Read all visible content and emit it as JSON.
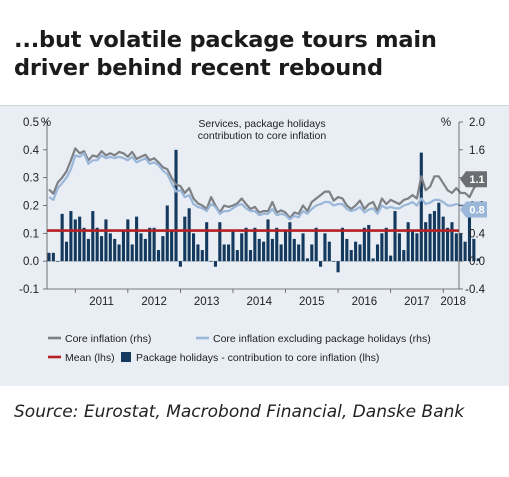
{
  "title": "...but volatile package tours main driver behind recent rebound",
  "source": "Source: Eurostat, Macrobond Financial, Danske Bank",
  "chart_data": {
    "type": "bar",
    "annotation": "Services, package holidays contribution to core inflation",
    "left_axis": {
      "unit": "%",
      "range": [
        -0.1,
        0.5
      ],
      "ticks": [
        -0.1,
        0.0,
        0.1,
        0.2,
        0.3,
        0.4,
        0.5
      ]
    },
    "right_axis": {
      "unit": "%",
      "range": [
        -0.4,
        2.0
      ],
      "ticks": [
        -0.4,
        0.0,
        0.4,
        0.8,
        1.2,
        1.6,
        2.0
      ]
    },
    "x_ticks": [
      "2011",
      "2012",
      "2013",
      "2014",
      "2015",
      "2016",
      "2017",
      "2018"
    ],
    "end_labels": [
      {
        "series": "Core inflation (rhs)",
        "value": "1.1",
        "color": "#6b6e72"
      },
      {
        "series": "Core inflation excluding package holidays (rhs)",
        "value": "0.8",
        "color": "#9ab6d8"
      }
    ],
    "legend": [
      {
        "label": "Core inflation (rhs)",
        "color": "#7d8084",
        "symbol": "line"
      },
      {
        "label": "Core inflation excluding package holidays (rhs)",
        "color": "#9ab6d8",
        "symbol": "line"
      },
      {
        "label": "Mean (lhs)",
        "color": "#b52025",
        "symbol": "line"
      },
      {
        "label": "Package holidays - contribution to core inflation (lhs)",
        "color": "#14395e",
        "symbol": "square"
      }
    ],
    "months_start": "2010-07",
    "mean_lhs": 0.11,
    "series": [
      {
        "name": "Package holidays - contribution to core inflation (lhs)",
        "axis": "lhs",
        "color": "#14395e",
        "values": [
          0.03,
          0.03,
          0.0,
          0.17,
          0.07,
          0.18,
          0.15,
          0.16,
          0.12,
          0.08,
          0.18,
          0.12,
          0.09,
          0.15,
          0.1,
          0.08,
          0.06,
          0.11,
          0.15,
          0.06,
          0.16,
          0.1,
          0.08,
          0.12,
          0.12,
          0.04,
          0.09,
          0.2,
          0.11,
          0.4,
          -0.02,
          0.16,
          0.19,
          0.1,
          0.06,
          0.04,
          0.14,
          0.0,
          -0.02,
          0.14,
          0.06,
          0.06,
          0.11,
          0.04,
          0.1,
          0.12,
          0.04,
          0.12,
          0.08,
          0.07,
          0.15,
          0.08,
          0.12,
          0.06,
          0.11,
          0.14,
          0.08,
          0.06,
          0.1,
          0.01,
          0.06,
          0.12,
          -0.02,
          0.1,
          0.07,
          0.0,
          -0.04,
          0.12,
          0.08,
          0.04,
          0.07,
          0.06,
          0.12,
          0.13,
          0.01,
          0.06,
          0.1,
          0.12,
          0.02,
          0.18,
          0.1,
          0.04,
          0.14,
          0.11,
          0.1,
          0.39,
          0.14,
          0.17,
          0.18,
          0.21,
          0.16,
          0.12,
          0.14,
          0.1,
          0.1,
          0.07,
          0.2,
          0.08,
          0.01
        ]
      },
      {
        "name": "Core inflation (rhs)",
        "axis": "rhs",
        "color": "#7d8084",
        "values": [
          1.03,
          0.97,
          1.13,
          1.2,
          1.29,
          1.45,
          1.62,
          1.55,
          1.58,
          1.45,
          1.52,
          1.5,
          1.58,
          1.52,
          1.55,
          1.52,
          1.57,
          1.55,
          1.5,
          1.57,
          1.47,
          1.5,
          1.53,
          1.45,
          1.48,
          1.42,
          1.35,
          1.32,
          1.2,
          1.1,
          1.08,
          0.98,
          1.05,
          0.9,
          0.83,
          0.8,
          0.75,
          0.92,
          0.8,
          0.7,
          0.8,
          0.78,
          0.8,
          0.83,
          0.9,
          0.82,
          0.75,
          0.78,
          0.7,
          0.72,
          0.72,
          0.85,
          0.7,
          0.73,
          0.7,
          0.62,
          0.7,
          0.68,
          0.8,
          0.72,
          0.85,
          0.9,
          0.95,
          1.0,
          1.0,
          0.87,
          0.92,
          0.9,
          0.8,
          0.75,
          0.8,
          0.87,
          0.75,
          0.82,
          0.85,
          0.72,
          0.9,
          0.82,
          0.88,
          0.85,
          0.82,
          0.88,
          0.9,
          0.95,
          0.9,
          1.22,
          1.02,
          1.07,
          1.22,
          1.22,
          1.12,
          1.02,
          0.98,
          1.05,
          0.98,
          0.98,
          0.92,
          1.05,
          1.12
        ]
      },
      {
        "name": "Core inflation excluding package holidays (rhs)",
        "axis": "rhs",
        "color": "#9ab6d8",
        "values": [
          0.92,
          0.88,
          1.05,
          1.12,
          1.2,
          1.32,
          1.52,
          1.5,
          1.55,
          1.4,
          1.45,
          1.45,
          1.52,
          1.48,
          1.5,
          1.48,
          1.5,
          1.48,
          1.45,
          1.5,
          1.42,
          1.45,
          1.48,
          1.4,
          1.42,
          1.38,
          1.3,
          1.25,
          1.12,
          1.0,
          1.02,
          0.92,
          0.95,
          0.82,
          0.78,
          0.76,
          0.72,
          0.82,
          0.78,
          0.68,
          0.72,
          0.72,
          0.76,
          0.8,
          0.82,
          0.76,
          0.72,
          0.72,
          0.66,
          0.68,
          0.68,
          0.75,
          0.66,
          0.68,
          0.66,
          0.6,
          0.65,
          0.63,
          0.72,
          0.68,
          0.75,
          0.8,
          0.82,
          0.85,
          0.85,
          0.8,
          0.82,
          0.82,
          0.75,
          0.72,
          0.74,
          0.78,
          0.7,
          0.74,
          0.76,
          0.68,
          0.8,
          0.76,
          0.78,
          0.76,
          0.76,
          0.8,
          0.82,
          0.85,
          0.8,
          0.9,
          0.82,
          0.84,
          0.88,
          0.88,
          0.85,
          0.8,
          0.8,
          0.82,
          0.8,
          0.8,
          0.78,
          0.8,
          0.8
        ]
      }
    ],
    "mean_series": {
      "name": "Mean (lhs)",
      "axis": "lhs",
      "color": "#b52025",
      "value": 0.11
    }
  }
}
